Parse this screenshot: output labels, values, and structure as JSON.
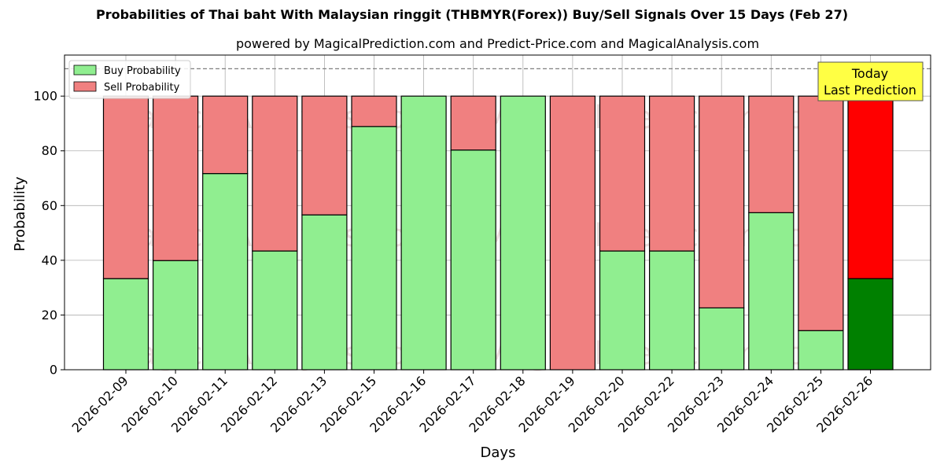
{
  "title": "Probabilities of Thai baht With Malaysian ringgit (THBMYR(Forex)) Buy/Sell Signals Over 15 Days (Feb 27)",
  "subtitle": "powered by MagicalPrediction.com and Predict-Price.com and MagicalAnalysis.com",
  "watermarks": [
    "MagicalAnalysis.com",
    "MagicalPrediction.com"
  ],
  "annotation": {
    "line1": "Today",
    "line2": "Last Prediction"
  },
  "colors": {
    "buy": "#90ee90",
    "sell": "#f08080",
    "buy_today": "#008000",
    "sell_today": "#ff0000",
    "annotation_bg": "#ffff44",
    "grid": "#b0b0b0"
  },
  "chart_data": {
    "type": "bar",
    "stacked": true,
    "categories": [
      "2026-02-09",
      "2026-02-10",
      "2026-02-11",
      "2026-02-12",
      "2026-02-13",
      "2026-02-15",
      "2026-02-16",
      "2026-02-17",
      "2026-02-18",
      "2026-02-19",
      "2026-02-20",
      "2026-02-22",
      "2026-02-23",
      "2026-02-24",
      "2026-02-25",
      "2026-02-26"
    ],
    "series": [
      {
        "name": "Buy Probability",
        "values": [
          33.3,
          39.9,
          71.7,
          43.4,
          56.6,
          88.9,
          100,
          80.3,
          100,
          0,
          43.4,
          43.4,
          22.6,
          57.4,
          14.3,
          33.3
        ]
      },
      {
        "name": "Sell Probability",
        "values": [
          66.7,
          60.1,
          28.3,
          56.6,
          43.4,
          11.1,
          0,
          19.7,
          0,
          100,
          56.6,
          56.6,
          77.4,
          42.6,
          85.7,
          66.7
        ]
      }
    ],
    "xlabel": "Days",
    "ylabel": "Probability",
    "ylim": [
      0,
      115
    ],
    "yticks": [
      0,
      20,
      40,
      60,
      80,
      100
    ],
    "reference_line": 110,
    "grid": true,
    "legend_position": "top-left"
  }
}
